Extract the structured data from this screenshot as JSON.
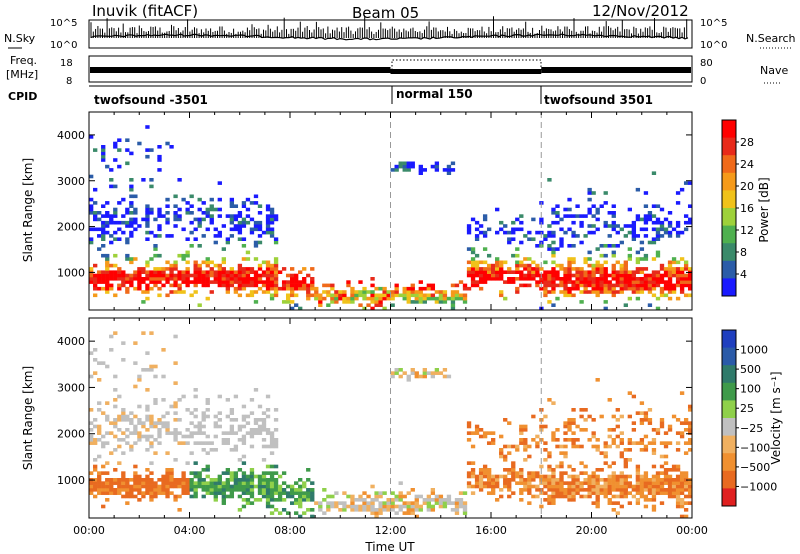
{
  "header": {
    "station": "Inuvik (fitACF)",
    "beam": "Beam 05",
    "date": "12/Nov/2012"
  },
  "left_labels": {
    "nsky": "N.Sky",
    "freq": "Freq.",
    "freq_unit": "[MHz]",
    "cpid": "CPID"
  },
  "right_labels": {
    "nsearch": "N.Search",
    "nave": "Nave"
  },
  "ticks": {
    "nsky_left": [
      "10^5",
      "10^0"
    ],
    "nsky_right": [
      "10^5",
      "10^0"
    ],
    "freq_left": [
      "18",
      "8"
    ],
    "nave_right": [
      "80",
      "0"
    ]
  },
  "cpid_segments": [
    {
      "label": "twofsound -3501",
      "start_h": 0,
      "end_h": 12
    },
    {
      "label": "normal 150",
      "start_h": 12,
      "end_h": 18
    },
    {
      "label": "twofsound 3501",
      "start_h": 18,
      "end_h": 24
    }
  ],
  "colors": {
    "power": [
      "#1a1aff",
      "#2b5ca8",
      "#3a8a6a",
      "#4fb04f",
      "#9ed13a",
      "#f0c21a",
      "#f59a1a",
      "#f06a1a",
      "#e82a1a",
      "#ff0000"
    ],
    "velocity": [
      "#1f3fbf",
      "#2a5aa8",
      "#2f7a6a",
      "#3f9a4a",
      "#8fd04a",
      "#c0c0c0",
      "#f0b060",
      "#f09030",
      "#e86a20",
      "#e02020"
    ]
  },
  "chart_data": [
    {
      "type": "heatmap",
      "name": "power",
      "xlabel": "",
      "ylabel": "Slant Range [km]",
      "xlim": [
        0,
        24
      ],
      "ylim": [
        180,
        4500
      ],
      "yticks": [
        "1000",
        "2000",
        "3000",
        "4000"
      ],
      "colorbar_label": "Power [dB]",
      "colorbar_ticks": [
        "4",
        "8",
        "12",
        "16",
        "20",
        "24",
        "28"
      ]
    },
    {
      "type": "heatmap",
      "name": "velocity",
      "xlabel": "Time UT",
      "ylabel": "Slant Range [km]",
      "xlim": [
        0,
        24
      ],
      "ylim": [
        180,
        4500
      ],
      "xticks": [
        "00:00",
        "04:00",
        "08:00",
        "12:00",
        "16:00",
        "20:00",
        "00:00"
      ],
      "yticks": [
        "1000",
        "2000",
        "3000",
        "4000"
      ],
      "colorbar_label": "Velocity [m s⁻¹]",
      "colorbar_ticks": [
        "1000",
        "500",
        "100",
        "25",
        "−25",
        "−100",
        "−500",
        "−1000"
      ]
    }
  ]
}
